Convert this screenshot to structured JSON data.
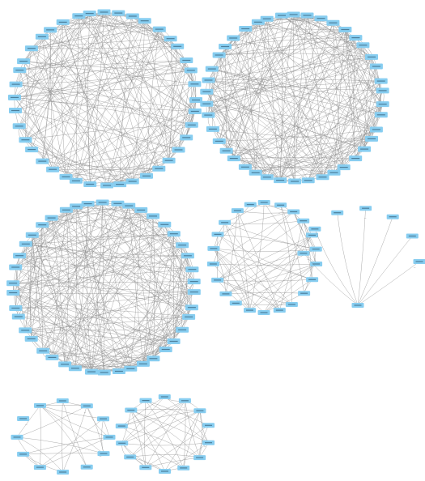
{
  "palette": {
    "node_fill": "#87cdf0",
    "node_text": "#1f3f57",
    "edge": "#8c8c8c",
    "edge_label": "#555555",
    "background": "#ffffff"
  },
  "node_label_font": "DejaVu Sans",
  "networks": [
    {
      "id": "network-1",
      "nodes": 40,
      "edge_density": 0.32,
      "layout": "circle",
      "seed": 11
    },
    {
      "id": "network-2",
      "nodes": 42,
      "edge_density": 0.28,
      "layout": "circle",
      "seed": 23
    },
    {
      "id": "network-3",
      "nodes": 42,
      "edge_density": 0.3,
      "layout": "circle",
      "seed": 37
    },
    {
      "id": "network-4",
      "nodes": 22,
      "edge_density": 0.28,
      "layout": "circle",
      "seed": 41
    },
    {
      "id": "network-5",
      "nodes": 8,
      "edge_density": 1.0,
      "layout": "hub-arc",
      "seed": 53
    },
    {
      "id": "network-6",
      "nodes": 12,
      "edge_density": 0.45,
      "layout": "circle",
      "seed": 61
    },
    {
      "id": "network-7",
      "nodes": 14,
      "edge_density": 0.45,
      "layout": "circle",
      "seed": 71
    }
  ],
  "label_note": "node label text in the screenshot is illegible at this resolution; labels rendered as placeholders"
}
